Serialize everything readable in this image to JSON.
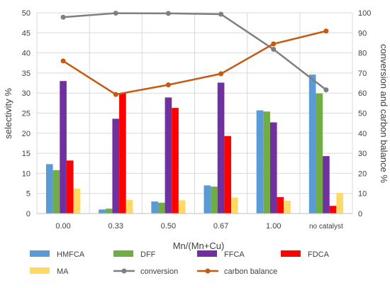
{
  "chart_data": {
    "type": "bar",
    "title": "",
    "xlabel": "Mn/(Mn+Cu)",
    "ylabel": "selectivity %",
    "y2label": "conversion and carbon balance %",
    "categories": [
      "0.00",
      "0.33",
      "0.50",
      "0.67",
      "1.00",
      "no catalyst"
    ],
    "ylim": [
      0,
      50
    ],
    "y2lim": [
      0,
      100
    ],
    "yticks": [
      "0",
      "5",
      "10",
      "15",
      "20",
      "25",
      "30",
      "35",
      "40",
      "45",
      "50"
    ],
    "y2ticks": [
      "0",
      "10",
      "20",
      "30",
      "40",
      "50",
      "60",
      "70",
      "80",
      "90",
      "100"
    ],
    "grid": true,
    "legend_position": "bottom",
    "series": [
      {
        "name": "HMFCA",
        "type": "bar",
        "axis": "left",
        "color": "#5B9BD5",
        "values": [
          12.3,
          1.0,
          3.0,
          7.0,
          25.7,
          34.6
        ]
      },
      {
        "name": "DFF",
        "type": "bar",
        "axis": "left",
        "color": "#70AD47",
        "values": [
          10.8,
          1.2,
          2.7,
          6.7,
          25.4,
          29.9
        ]
      },
      {
        "name": "FFCA",
        "type": "bar",
        "axis": "left",
        "color": "#7030A0",
        "values": [
          33.0,
          23.6,
          28.9,
          32.6,
          22.7,
          14.3
        ]
      },
      {
        "name": "FDCA",
        "type": "bar",
        "axis": "left",
        "color": "#FF0000",
        "values": [
          13.2,
          30.0,
          26.3,
          19.3,
          4.1,
          1.9
        ]
      },
      {
        "name": "MA",
        "type": "bar",
        "axis": "left",
        "color": "#FFD966",
        "values": [
          6.2,
          3.4,
          3.3,
          4.0,
          3.2,
          5.1
        ]
      },
      {
        "name": "conversion",
        "type": "line",
        "axis": "right",
        "color": "#7F7F7F",
        "values": [
          97.8,
          99.8,
          99.7,
          99.3,
          81.8,
          61.6
        ]
      },
      {
        "name": "carbon balance",
        "type": "line",
        "axis": "right",
        "color": "#C55A11",
        "values": [
          76.0,
          59.3,
          64.1,
          69.6,
          84.5,
          90.9
        ]
      }
    ]
  }
}
